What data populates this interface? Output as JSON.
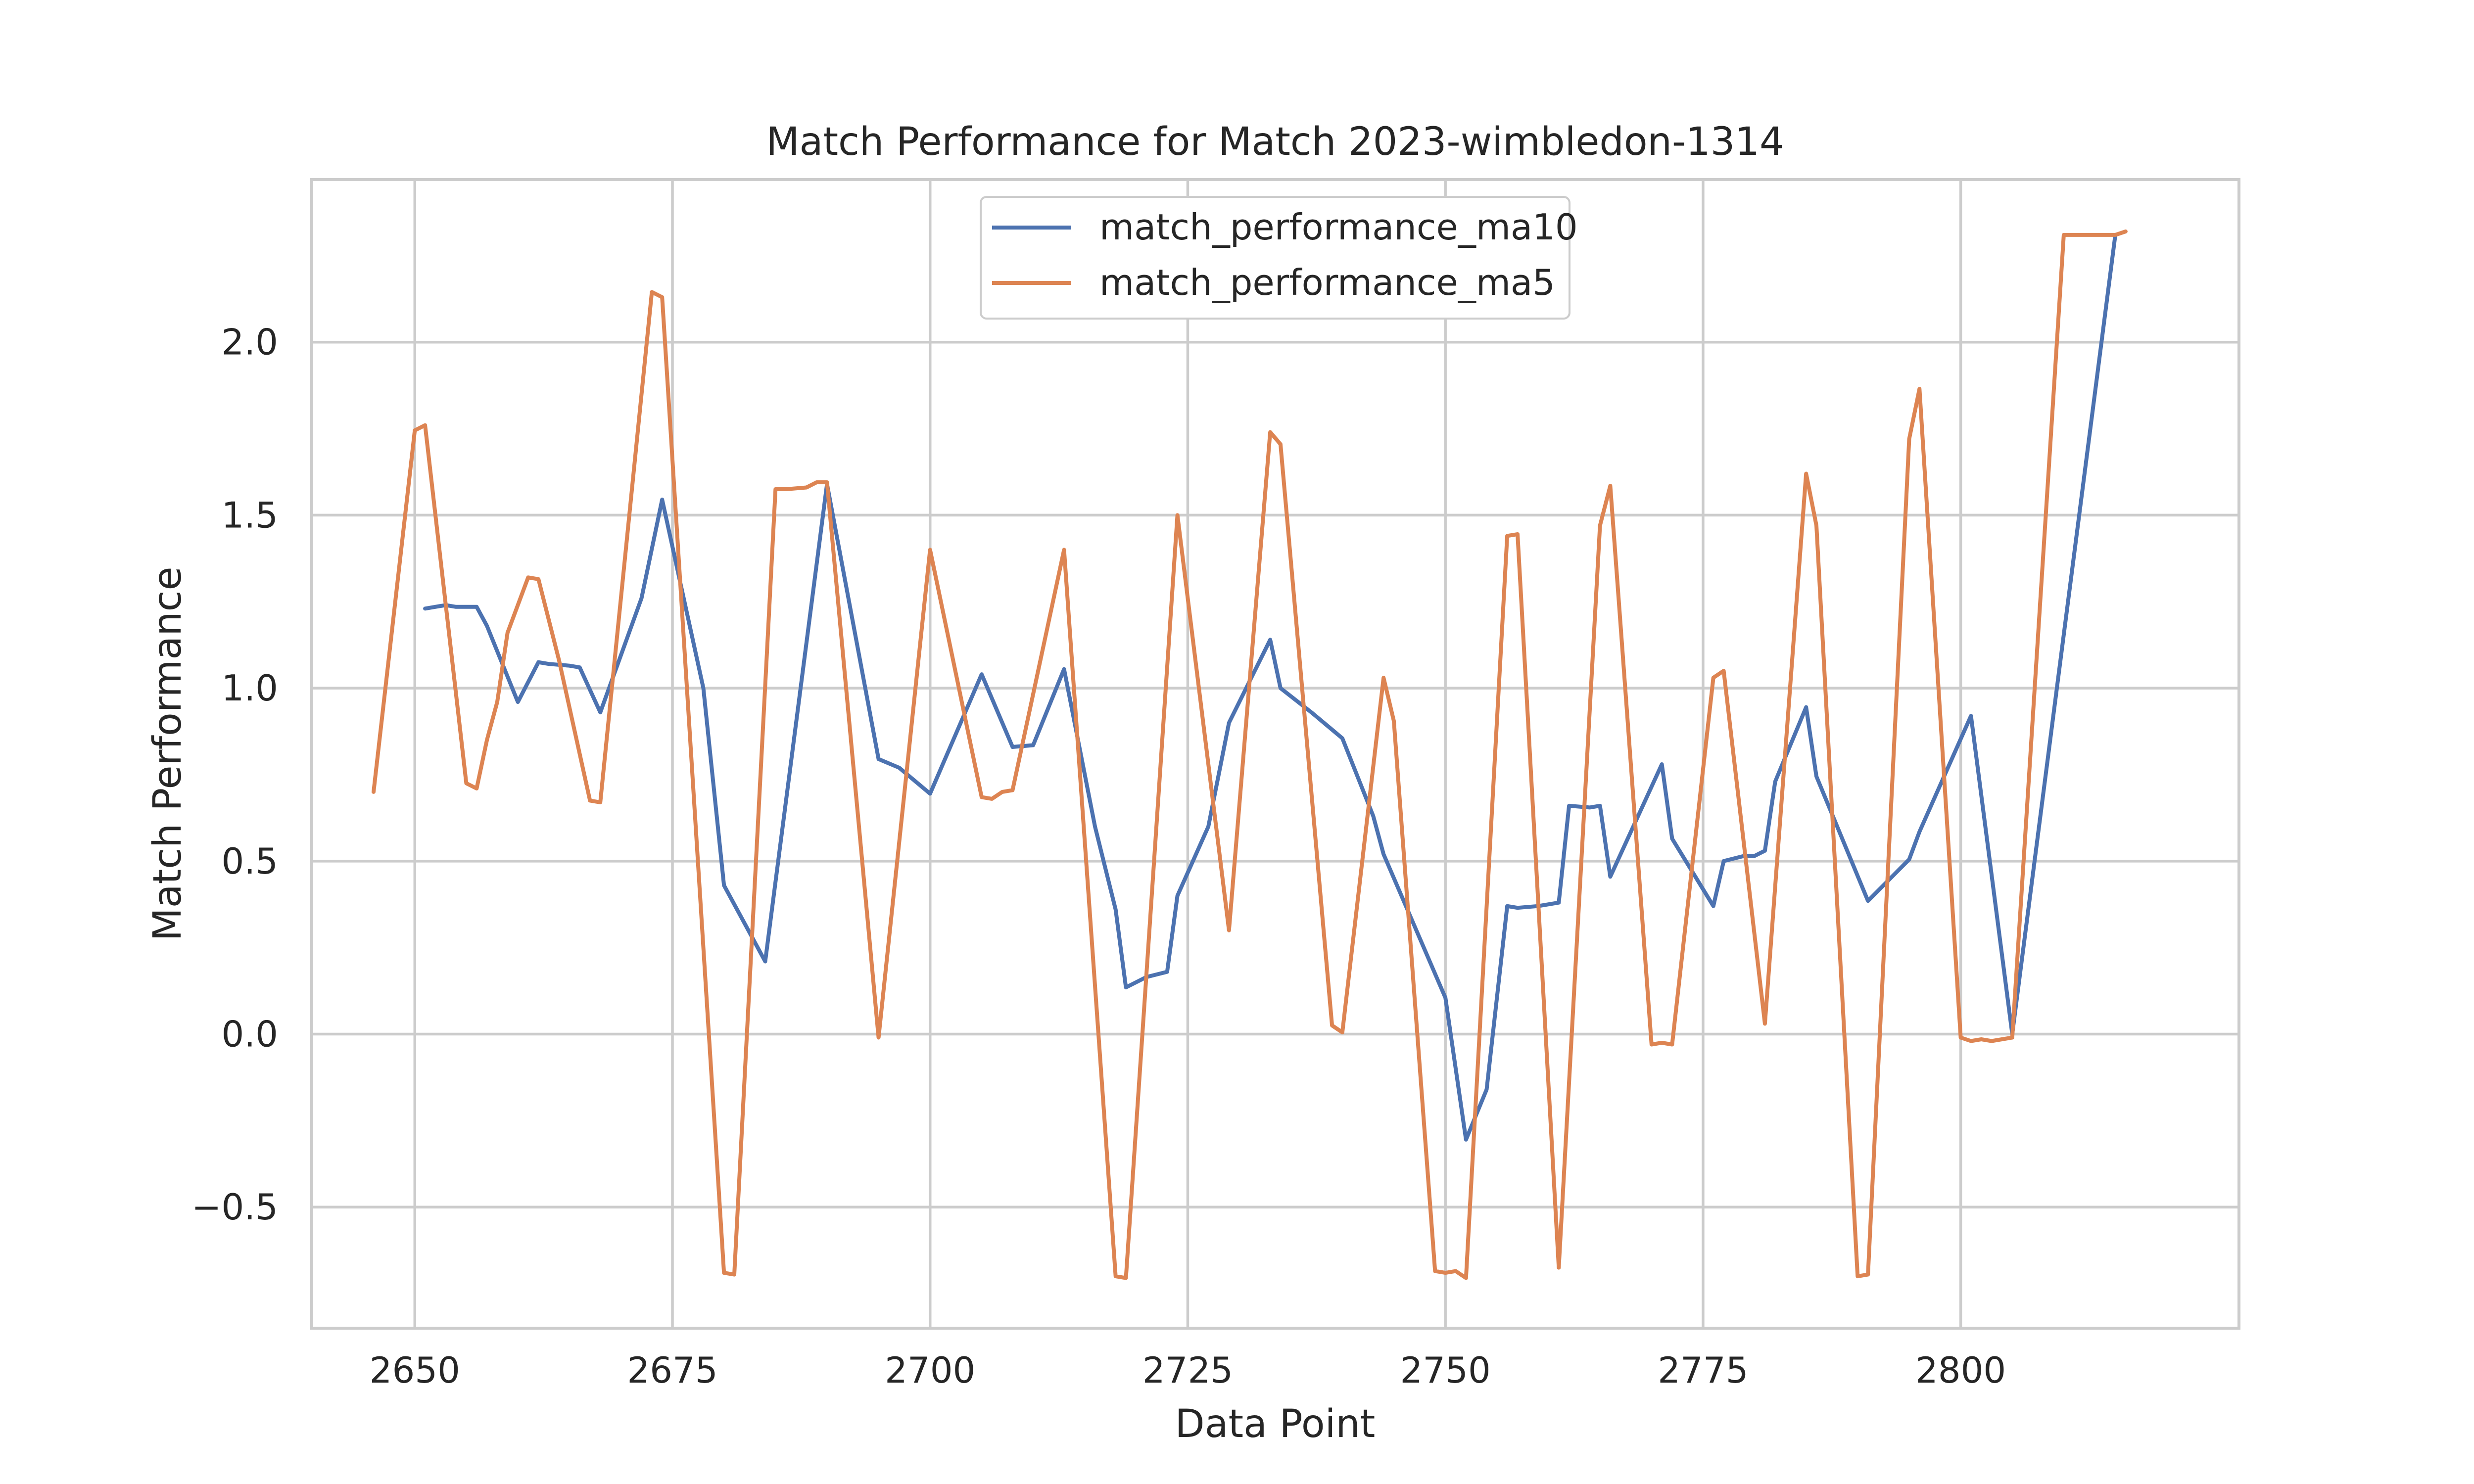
{
  "chart_data": {
    "type": "line",
    "title": "Match Performance for Match 2023-wimbledon-1314",
    "xlabel": "Data Point",
    "ylabel": "Match Performance",
    "xlim": [
      2640,
      2827
    ],
    "ylim": [
      -0.85,
      2.47
    ],
    "xticks": [
      2650,
      2675,
      2700,
      2725,
      2750,
      2775,
      2800
    ],
    "xtick_labels": [
      "2650",
      "2675",
      "2700",
      "2725",
      "2750",
      "2775",
      "2800"
    ],
    "yticks": [
      -0.5,
      0.0,
      0.5,
      1.0,
      1.5,
      2.0
    ],
    "ytick_labels": [
      "−0.5",
      "0.0",
      "0.5",
      "1.0",
      "1.5",
      "2.0"
    ],
    "grid": true,
    "legend_position": "top-center",
    "series": [
      {
        "name": "match_performance_ma10",
        "color": "#4c72b0",
        "x": [
          2651,
          2653,
          2654,
          2656,
          2657,
          2660,
          2662,
          2663,
          2665,
          2666,
          2668,
          2672,
          2674,
          2678,
          2680,
          2684,
          2690,
          2695,
          2697,
          2700,
          2705,
          2708,
          2710,
          2713,
          2716,
          2718,
          2719,
          2721,
          2723,
          2724,
          2727,
          2729,
          2733,
          2734,
          2737,
          2739,
          2740,
          2743,
          2744,
          2750,
          2752,
          2754,
          2756,
          2757,
          2759,
          2761,
          2762,
          2764,
          2765,
          2766,
          2771,
          2772,
          2776,
          2777,
          2779,
          2780,
          2781,
          2782,
          2785,
          2786,
          2791,
          2795,
          2796,
          2801,
          2805,
          2815
        ],
        "y": [
          1.23,
          1.24,
          1.235,
          1.235,
          1.18,
          0.96,
          1.075,
          1.07,
          1.065,
          1.06,
          0.93,
          1.26,
          1.545,
          1.0,
          0.43,
          0.21,
          1.59,
          0.795,
          0.77,
          0.695,
          1.04,
          0.83,
          0.835,
          1.055,
          0.6,
          0.36,
          0.135,
          0.165,
          0.18,
          0.4,
          0.6,
          0.9,
          1.14,
          1.0,
          0.93,
          0.88,
          0.855,
          0.63,
          0.52,
          0.105,
          -0.305,
          -0.16,
          0.37,
          0.365,
          0.37,
          0.38,
          0.66,
          0.655,
          0.66,
          0.455,
          0.78,
          0.565,
          0.37,
          0.5,
          0.515,
          0.515,
          0.53,
          0.73,
          0.945,
          0.745,
          0.385,
          0.505,
          0.585,
          0.92,
          0.0,
          2.31
        ]
      },
      {
        "name": "match_performance_ma5",
        "color": "#dd8452",
        "x": [
          2646,
          2650,
          2651,
          2655,
          2656,
          2657,
          2658,
          2659,
          2661,
          2662,
          2664,
          2667,
          2668,
          2673,
          2674,
          2680,
          2681,
          2685,
          2686,
          2688,
          2689,
          2690,
          2695,
          2700,
          2705,
          2706,
          2707,
          2708,
          2713,
          2718,
          2719,
          2724,
          2729,
          2733,
          2734,
          2739,
          2740,
          2744,
          2745,
          2749,
          2750,
          2751,
          2752,
          2756,
          2757,
          2761,
          2765,
          2766,
          2770,
          2771,
          2772,
          2776,
          2777,
          2781,
          2785,
          2786,
          2790,
          2791,
          2795,
          2796,
          2800,
          2801,
          2802,
          2803,
          2804,
          2805,
          2810,
          2814,
          2815,
          2816
        ],
        "y": [
          0.7,
          1.745,
          1.76,
          0.725,
          0.71,
          0.85,
          0.96,
          1.16,
          1.32,
          1.315,
          1.08,
          0.675,
          0.67,
          2.145,
          2.13,
          -0.69,
          -0.695,
          1.575,
          1.575,
          1.58,
          1.595,
          1.595,
          -0.01,
          1.4,
          0.685,
          0.68,
          0.7,
          0.705,
          1.4,
          -0.7,
          -0.705,
          1.5,
          0.3,
          1.74,
          1.705,
          0.025,
          0.005,
          1.03,
          0.905,
          -0.685,
          -0.69,
          -0.685,
          -0.705,
          1.44,
          1.445,
          -0.675,
          1.47,
          1.585,
          -0.03,
          -0.025,
          -0.03,
          1.03,
          1.05,
          0.03,
          1.62,
          1.47,
          -0.7,
          -0.695,
          1.72,
          1.865,
          -0.01,
          -0.02,
          -0.015,
          -0.02,
          -0.015,
          -0.01,
          2.31,
          2.31,
          2.31,
          2.32
        ]
      }
    ]
  }
}
